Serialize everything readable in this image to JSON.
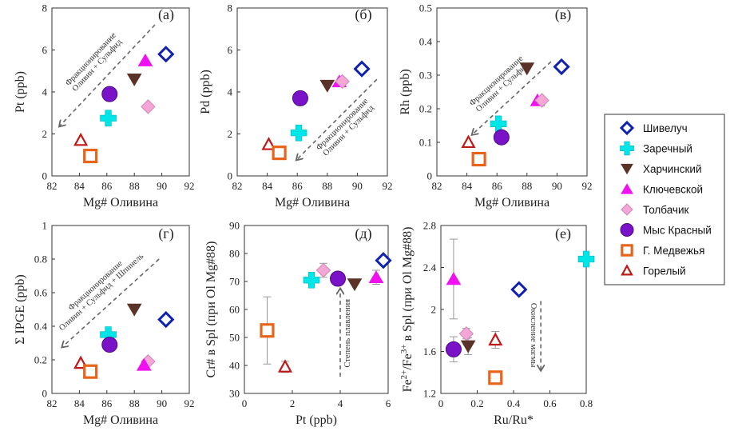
{
  "colors": {
    "shiveluch": "#1020b0",
    "zarechny": "#00e5e8",
    "kharchinsky": "#5a3228",
    "klyuchevskoy": "#f010f0",
    "tolbachik": "#f4a6d6",
    "mys_krasny": "#7a12c8",
    "medvezhya": "#e8641a",
    "gorely": "#c01818",
    "axis": "#333333",
    "arrow": "#666666"
  },
  "legend": {
    "entries": [
      {
        "key": "shiveluch",
        "label": "Шивелуч",
        "marker": "diamond-open"
      },
      {
        "key": "zarechny",
        "label": "Заречный",
        "marker": "cross"
      },
      {
        "key": "kharchinsky",
        "label": "Харчинский",
        "marker": "triangle-down"
      },
      {
        "key": "klyuchevskoy",
        "label": "Ключевской",
        "marker": "triangle-up"
      },
      {
        "key": "tolbachik",
        "label": "Толбачик",
        "marker": "diamond"
      },
      {
        "key": "mys_krasny",
        "label": "Мыс Красный",
        "marker": "circle"
      },
      {
        "key": "medvezhya",
        "label": "Г. Медвежья",
        "marker": "square-open"
      },
      {
        "key": "gorely",
        "label": "Горелый",
        "marker": "triangle-open"
      }
    ]
  },
  "chart_data": [
    {
      "id": "a",
      "type": "scatter",
      "panel_label": "(а)",
      "xlabel": "Mg# Оливина",
      "ylabel": "Pt (ppb)",
      "xlim": [
        82,
        92
      ],
      "ylim": [
        0,
        8
      ],
      "xticks": [
        82,
        84,
        86,
        88,
        90,
        92
      ],
      "yticks": [
        0,
        2,
        4,
        6,
        8
      ],
      "xtick_labels": [
        "82",
        "84",
        "86",
        "88",
        "90",
        "92"
      ],
      "ytick_labels": [
        "0",
        "2",
        "4",
        "6",
        "8"
      ],
      "points": [
        {
          "series": "shiveluch",
          "x": 90.3,
          "y": 5.8
        },
        {
          "series": "klyuchevskoy",
          "x": 88.8,
          "y": 5.5
        },
        {
          "series": "kharchinsky",
          "x": 88.0,
          "y": 4.6
        },
        {
          "series": "mys_krasny",
          "x": 86.2,
          "y": 3.9
        },
        {
          "series": "tolbachik",
          "x": 89.0,
          "y": 3.3
        },
        {
          "series": "zarechny",
          "x": 86.1,
          "y": 2.75
        },
        {
          "series": "gorely",
          "x": 84.1,
          "y": 1.7
        },
        {
          "series": "medvezhya",
          "x": 84.8,
          "y": 0.95
        }
      ],
      "annotations": [
        {
          "text": "Фракционирование",
          "text2": "Оливин + Сульфид",
          "arrow_from": [
            89.5,
            7.2
          ],
          "arrow_to": [
            82.6,
            2.4
          ]
        }
      ]
    },
    {
      "id": "b",
      "type": "scatter",
      "panel_label": "(б)",
      "xlabel": "Mg# Оливина",
      "ylabel": "Pd (ppb)",
      "xlim": [
        82,
        92
      ],
      "ylim": [
        0,
        8
      ],
      "xticks": [
        82,
        84,
        86,
        88,
        90,
        92
      ],
      "yticks": [
        0,
        2,
        4,
        6,
        8
      ],
      "xtick_labels": [
        "82",
        "84",
        "86",
        "88",
        "90",
        "92"
      ],
      "ytick_labels": [
        "0",
        "2",
        "4",
        "6",
        "8"
      ],
      "points": [
        {
          "series": "shiveluch",
          "x": 90.3,
          "y": 5.1
        },
        {
          "series": "klyuchevskoy",
          "x": 88.8,
          "y": 4.5
        },
        {
          "series": "tolbachik",
          "x": 89.0,
          "y": 4.5
        },
        {
          "series": "kharchinsky",
          "x": 88.0,
          "y": 4.3
        },
        {
          "series": "mys_krasny",
          "x": 86.2,
          "y": 3.7
        },
        {
          "series": "zarechny",
          "x": 86.1,
          "y": 2.05
        },
        {
          "series": "gorely",
          "x": 84.1,
          "y": 1.5
        },
        {
          "series": "medvezhya",
          "x": 84.8,
          "y": 1.1
        }
      ],
      "annotations": [
        {
          "text": "Фракционирование",
          "text2": "Оливин + Сульфид",
          "arrow_from": [
            91.3,
            4.6
          ],
          "arrow_to": [
            86.0,
            0.8
          ]
        }
      ]
    },
    {
      "id": "c",
      "type": "scatter",
      "panel_label": "(в)",
      "xlabel": "Mg# Оливина",
      "ylabel": "Rh (ppb)",
      "xlim": [
        82,
        92
      ],
      "ylim": [
        0,
        0.5
      ],
      "xticks": [
        82,
        84,
        86,
        88,
        90,
        92
      ],
      "yticks": [
        0,
        0.1,
        0.2,
        0.3,
        0.4,
        0.5
      ],
      "xtick_labels": [
        "82",
        "84",
        "86",
        "88",
        "90",
        "92"
      ],
      "ytick_labels": [
        "0",
        "0.1",
        "0.2",
        "0.3",
        "0.4",
        "0.5"
      ],
      "points": [
        {
          "series": "shiveluch",
          "x": 90.3,
          "y": 0.325
        },
        {
          "series": "kharchinsky",
          "x": 88.0,
          "y": 0.32
        },
        {
          "series": "klyuchevskoy",
          "x": 88.7,
          "y": 0.225
        },
        {
          "series": "tolbachik",
          "x": 89.0,
          "y": 0.225
        },
        {
          "series": "zarechny",
          "x": 86.1,
          "y": 0.155
        },
        {
          "series": "mys_krasny",
          "x": 86.3,
          "y": 0.115
        },
        {
          "series": "gorely",
          "x": 84.1,
          "y": 0.1
        },
        {
          "series": "medvezhya",
          "x": 84.8,
          "y": 0.05
        }
      ],
      "annotations": [
        {
          "text": "Фракционирование",
          "text2": "Оливин + Сульфид",
          "arrow_from": [
            89.6,
            0.34
          ],
          "arrow_to": [
            84.4,
            0.125
          ]
        }
      ]
    },
    {
      "id": "d",
      "type": "scatter",
      "panel_label": "(г)",
      "xlabel": "Mg# Оливина",
      "ylabel": "Σ IPGE (ppb)",
      "xlim": [
        82,
        92
      ],
      "ylim": [
        0,
        1
      ],
      "xticks": [
        82,
        84,
        86,
        88,
        90,
        92
      ],
      "yticks": [
        0,
        0.2,
        0.4,
        0.6,
        0.8,
        1
      ],
      "xtick_labels": [
        "82",
        "84",
        "86",
        "88",
        "90",
        "92"
      ],
      "ytick_labels": [
        "0",
        "0.2",
        "0.4",
        "0.6",
        "0.8",
        "1"
      ],
      "points": [
        {
          "series": "kharchinsky",
          "x": 88.0,
          "y": 0.5
        },
        {
          "series": "shiveluch",
          "x": 90.3,
          "y": 0.44
        },
        {
          "series": "zarechny",
          "x": 86.1,
          "y": 0.35
        },
        {
          "series": "mys_krasny",
          "x": 86.2,
          "y": 0.29
        },
        {
          "series": "tolbachik",
          "x": 89.0,
          "y": 0.19
        },
        {
          "series": "gorely",
          "x": 84.1,
          "y": 0.18
        },
        {
          "series": "klyuchevskoy",
          "x": 88.7,
          "y": 0.17
        },
        {
          "series": "medvezhya",
          "x": 84.8,
          "y": 0.13
        }
      ],
      "annotations": [
        {
          "text": "Фракционирование",
          "text2": "Оливин + Сульфид + Шпинель",
          "arrow_from": [
            89.8,
            0.8
          ],
          "arrow_to": [
            82.8,
            0.28
          ]
        }
      ]
    },
    {
      "id": "e",
      "type": "scatter",
      "panel_label": "(д)",
      "xlabel": "Pt (ppb)",
      "ylabel": "Cr# в Spl (при Ol Mg#88)",
      "xlim": [
        0,
        6
      ],
      "ylim": [
        30,
        90
      ],
      "xticks": [
        0,
        2,
        4,
        6
      ],
      "yticks": [
        30,
        40,
        50,
        60,
        70,
        80,
        90
      ],
      "xtick_labels": [
        "0",
        "2",
        "4",
        "6"
      ],
      "ytick_labels": [
        "30",
        "40",
        "50",
        "60",
        "70",
        "80",
        "90"
      ],
      "points": [
        {
          "series": "shiveluch",
          "x": 5.8,
          "y": 77.5
        },
        {
          "series": "tolbachik",
          "x": 3.3,
          "y": 74.0,
          "err": 2.5
        },
        {
          "series": "klyuchevskoy",
          "x": 5.5,
          "y": 71.5,
          "err": 2.5
        },
        {
          "series": "mys_krasny",
          "x": 3.9,
          "y": 71.0
        },
        {
          "series": "zarechny",
          "x": 2.8,
          "y": 70.5
        },
        {
          "series": "kharchinsky",
          "x": 4.6,
          "y": 69.0
        },
        {
          "series": "medvezhya",
          "x": 0.95,
          "y": 52.5,
          "err": 12
        },
        {
          "series": "gorely",
          "x": 1.7,
          "y": 39.5,
          "err": 2
        }
      ],
      "annotations": [
        {
          "text": "Степень плавления",
          "arrow_from": [
            4.0,
            36
          ],
          "arrow_to": [
            4.0,
            67
          ]
        }
      ]
    },
    {
      "id": "f",
      "type": "scatter",
      "panel_label": "(е)",
      "xlabel": "Ru/Ru*",
      "ylabel": "Fe2+/Fe3+ в Spl (при Ol Mg#88)",
      "ylabel_parts": {
        "pre": "Fe",
        "sup1": "2+",
        "mid": "/Fe",
        "sup2": "3+",
        "post": " в Spl (при Ol Mg#88)"
      },
      "xlim": [
        0,
        0.8
      ],
      "ylim": [
        1.2,
        2.8
      ],
      "xticks": [
        0,
        0.2,
        0.4,
        0.6,
        0.8
      ],
      "yticks": [
        1.2,
        1.6,
        2,
        2.4,
        2.8
      ],
      "xtick_labels": [
        "0",
        "0.2",
        "0.4",
        "0.6",
        "0.8"
      ],
      "ytick_labels": [
        "1.2",
        "1.6",
        "2",
        "2.4",
        "2.8"
      ],
      "points": [
        {
          "series": "zarechny",
          "x": 0.8,
          "y": 2.48
        },
        {
          "series": "klyuchevskoy",
          "x": 0.07,
          "y": 2.29,
          "err": 0.38
        },
        {
          "series": "shiveluch",
          "x": 0.43,
          "y": 2.19,
          "err": 0.02
        },
        {
          "series": "tolbachik",
          "x": 0.14,
          "y": 1.77,
          "err": 0.05
        },
        {
          "series": "gorely",
          "x": 0.3,
          "y": 1.71,
          "err": 0.08
        },
        {
          "series": "kharchinsky",
          "x": 0.15,
          "y": 1.65,
          "err": 0.08
        },
        {
          "series": "mys_krasny",
          "x": 0.07,
          "y": 1.62,
          "err": 0.12
        },
        {
          "series": "medvezhya",
          "x": 0.3,
          "y": 1.35,
          "err": 0.03
        }
      ],
      "annotations": [
        {
          "text": "Окисление магмы",
          "arrow_from": [
            0.55,
            2.08
          ],
          "arrow_to": [
            0.55,
            1.43
          ]
        }
      ]
    }
  ]
}
